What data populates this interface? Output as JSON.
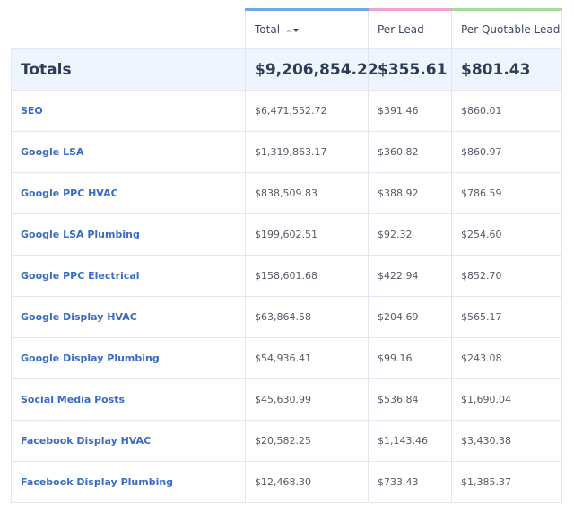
{
  "table": {
    "headers": [
      "Total",
      "Per Lead",
      "Per Quotable Lead"
    ],
    "totals": [
      "Totals",
      "$9,206,854.22",
      "$355.61",
      "$801.43"
    ],
    "rows": [
      [
        "SEO",
        "$6,471,552.72",
        "$391.46",
        "$860.01"
      ],
      [
        "Google LSA",
        "$1,319,863.17",
        "$360.82",
        "$860.97"
      ],
      [
        "Google PPC HVAC",
        "$838,509.83",
        "$388.92",
        "$786.59"
      ],
      [
        "Google LSA Plumbing",
        "$199,602.51",
        "$92.32",
        "$254.60"
      ],
      [
        "Google PPC Electrical",
        "$158,601.68",
        "$422.94",
        "$852.70"
      ],
      [
        "Google Display HVAC",
        "$63,864.58",
        "$204.69",
        "$565.17"
      ],
      [
        "Google Display Plumbing",
        "$54,936.41",
        "$99.16",
        "$243.08"
      ],
      [
        "Social Media Posts",
        "$45,630.99",
        "$536.84",
        "$1,690.04"
      ],
      [
        "Facebook Display HVAC",
        "$20,582.25",
        "$1,143.46",
        "$3,430.38"
      ],
      [
        "Facebook Display Plumbing",
        "$12,468.30",
        "$733.43",
        "$1,385.37"
      ]
    ]
  }
}
